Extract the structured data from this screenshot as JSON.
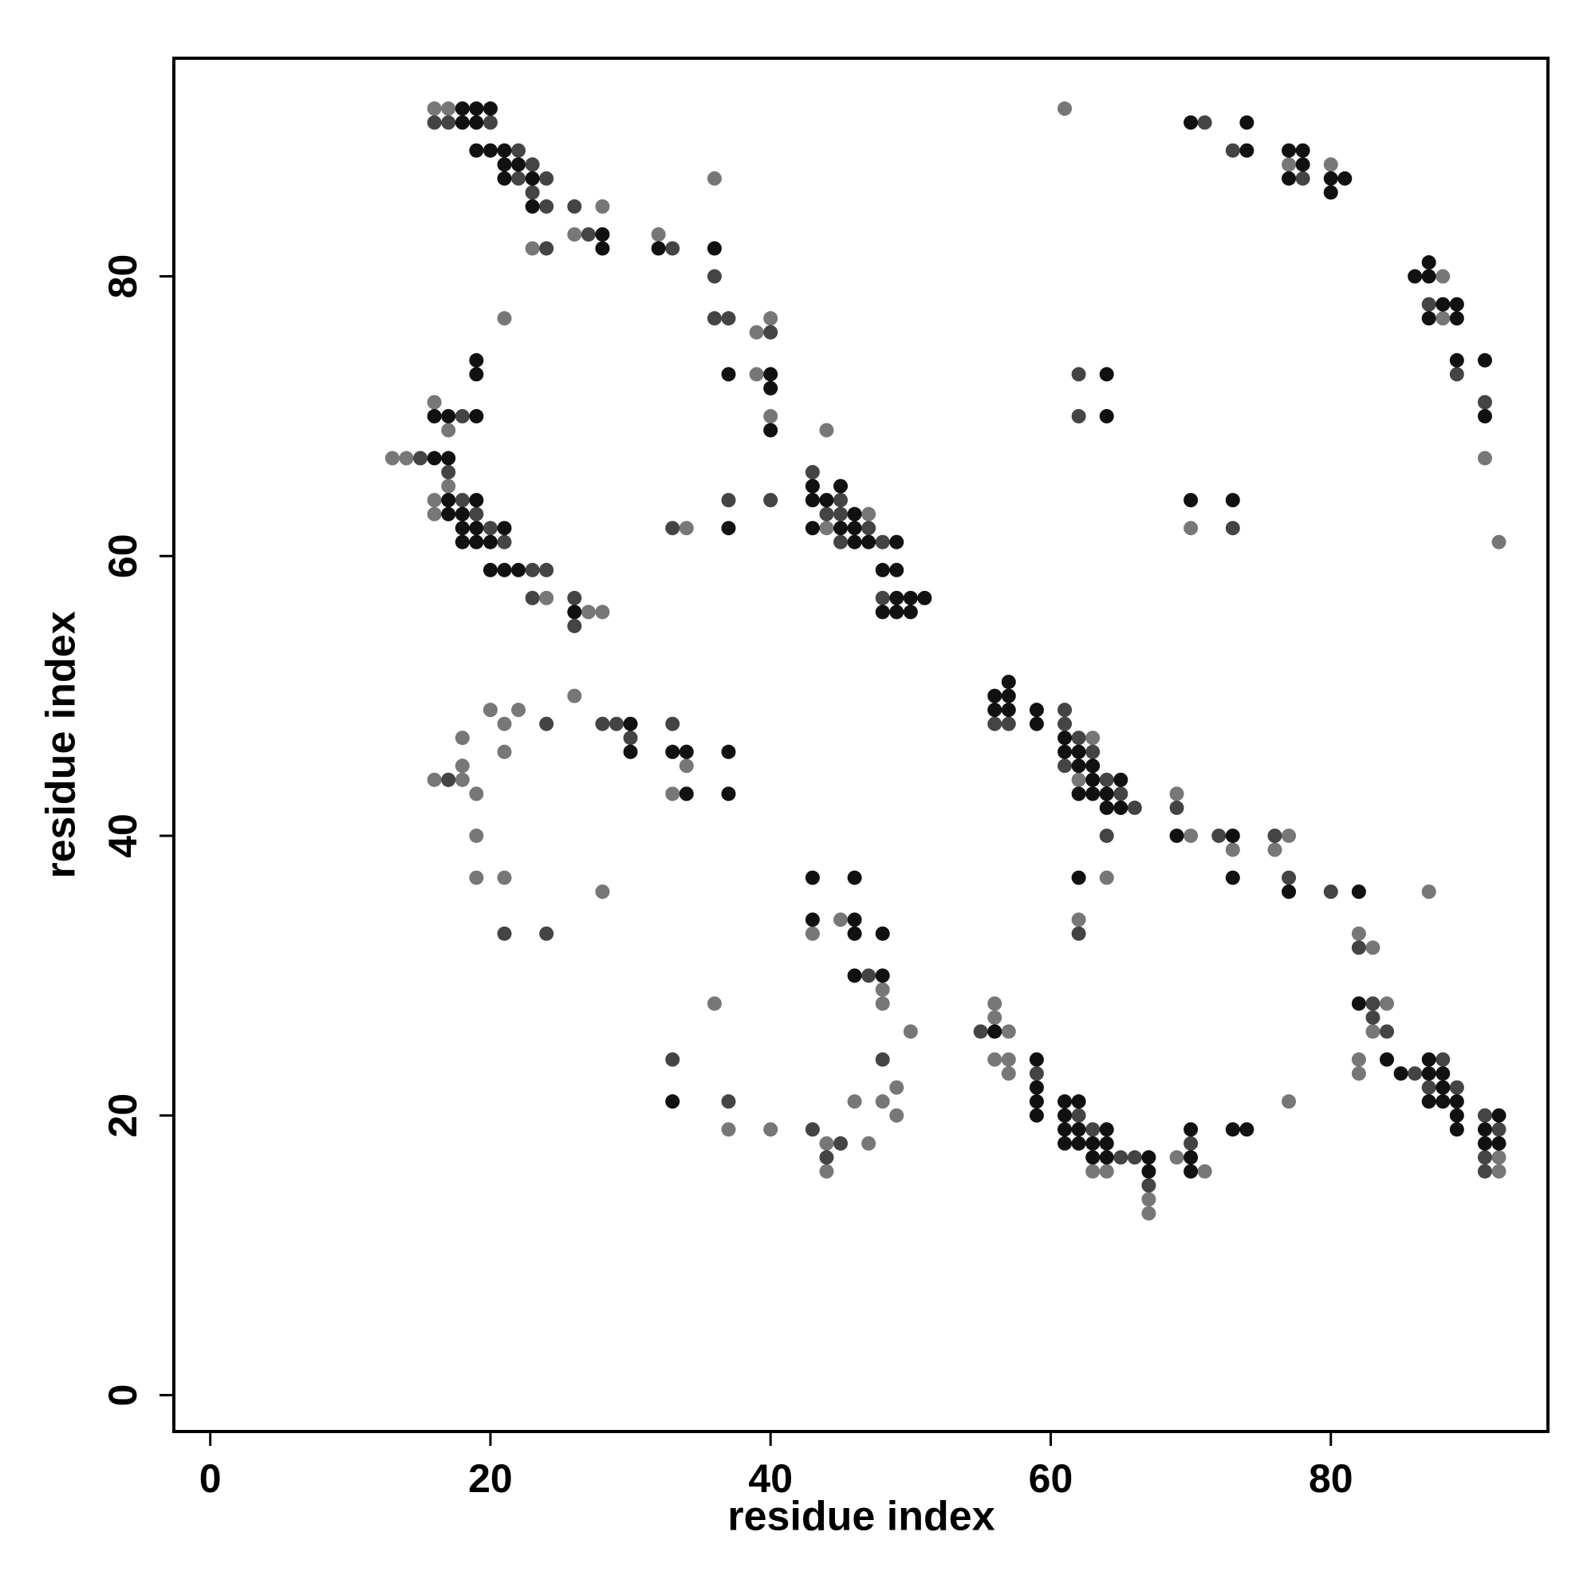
{
  "chart_data": {
    "type": "scatter",
    "xlabel": "residue index",
    "ylabel": "residue index",
    "xlim": [
      -2.6,
      95.5
    ],
    "ylim": [
      -2.6,
      95.6
    ],
    "xticks": [
      0,
      20,
      40,
      60,
      80
    ],
    "yticks": [
      0,
      20,
      40,
      60,
      80
    ],
    "series": [
      {
        "color": "#777777",
        "x": [
          16,
          17,
          61,
          77,
          80,
          36,
          28,
          26,
          32,
          23,
          88,
          21,
          40,
          88,
          39,
          39,
          16,
          40,
          17,
          44,
          13,
          14,
          91,
          17,
          16,
          16,
          47,
          34,
          44,
          70,
          92,
          24,
          27,
          28,
          26,
          20,
          22,
          21,
          18,
          63,
          21,
          18,
          34,
          16,
          18,
          62,
          19,
          33,
          69,
          19,
          70,
          77,
          73,
          76,
          19,
          21,
          64,
          28,
          87,
          45,
          62,
          43,
          82,
          83,
          48,
          36,
          48,
          56,
          84,
          56,
          50,
          57,
          83,
          56,
          57,
          82,
          57,
          82,
          49,
          46,
          48,
          77,
          49,
          37,
          40,
          44,
          47,
          69,
          92,
          44,
          63,
          64,
          71,
          92,
          67,
          67
        ],
        "values": [
          92,
          92,
          92,
          88,
          88,
          87,
          85,
          83,
          83,
          82,
          80,
          77,
          77,
          77,
          76,
          73,
          71,
          70,
          69,
          69,
          67,
          67,
          67,
          65,
          64,
          63,
          63,
          62,
          62,
          62,
          61,
          57,
          56,
          56,
          50,
          49,
          49,
          48,
          47,
          47,
          46,
          45,
          45,
          44,
          44,
          44,
          43,
          43,
          43,
          40,
          40,
          40,
          39,
          39,
          37,
          37,
          37,
          36,
          36,
          34,
          34,
          33,
          33,
          32,
          29,
          28,
          28,
          28,
          28,
          27,
          26,
          26,
          26,
          24,
          24,
          24,
          23,
          23,
          22,
          21,
          21,
          21,
          20,
          19,
          19,
          18,
          18,
          17,
          17,
          16,
          16,
          16,
          16,
          16,
          14,
          13
        ]
      },
      {
        "color": "#444444",
        "x": [
          16,
          17,
          20,
          22,
          23,
          22,
          24,
          23,
          24,
          26,
          27,
          24,
          33,
          36,
          36,
          37,
          40,
          18,
          15,
          17,
          43,
          18,
          37,
          40,
          45,
          19,
          44,
          45,
          20,
          33,
          47,
          21,
          45,
          48,
          23,
          24,
          23,
          26,
          48,
          26,
          61,
          24,
          28,
          29,
          33,
          56,
          57,
          61,
          30,
          62,
          63,
          61,
          17,
          64,
          65,
          66,
          69,
          64,
          72,
          76,
          77,
          80,
          21,
          24,
          62,
          82,
          47,
          83,
          83,
          55,
          84,
          33,
          48,
          88,
          59,
          86,
          87,
          89,
          37,
          62,
          91,
          43,
          63,
          92,
          45,
          70,
          44,
          65,
          66,
          91,
          91,
          67,
          71,
          73,
          78,
          87,
          62,
          89,
          91,
          62,
          73
        ],
        "values": [
          91,
          91,
          91,
          89,
          88,
          87,
          87,
          86,
          85,
          85,
          83,
          82,
          82,
          80,
          77,
          77,
          76,
          70,
          67,
          66,
          66,
          64,
          64,
          64,
          64,
          63,
          63,
          63,
          62,
          62,
          62,
          61,
          61,
          61,
          59,
          59,
          57,
          57,
          57,
          55,
          49,
          48,
          48,
          48,
          48,
          48,
          48,
          48,
          47,
          47,
          46,
          45,
          44,
          44,
          43,
          42,
          42,
          40,
          40,
          40,
          37,
          36,
          33,
          33,
          33,
          32,
          30,
          28,
          27,
          26,
          26,
          24,
          24,
          24,
          23,
          23,
          22,
          22,
          21,
          20,
          20,
          19,
          19,
          19,
          18,
          18,
          17,
          17,
          17,
          17,
          16,
          15,
          91,
          89,
          87,
          78,
          73,
          73,
          71,
          70,
          62
        ]
      },
      {
        "color": "#111111",
        "x": [
          18,
          19,
          20,
          18,
          19,
          19,
          20,
          21,
          21,
          22,
          21,
          23,
          23,
          28,
          28,
          32,
          36,
          19,
          19,
          37,
          40,
          40,
          16,
          17,
          19,
          40,
          16,
          17,
          43,
          45,
          17,
          19,
          43,
          44,
          17,
          18,
          46,
          18,
          19,
          21,
          37,
          43,
          45,
          46,
          18,
          19,
          20,
          46,
          47,
          49,
          20,
          21,
          22,
          48,
          49,
          49,
          50,
          51,
          26,
          48,
          49,
          50,
          57,
          56,
          57,
          56,
          57,
          59,
          30,
          59,
          61,
          30,
          33,
          34,
          37,
          61,
          62,
          62,
          63,
          63,
          65,
          34,
          37,
          62,
          63,
          64,
          64,
          65,
          69,
          73,
          43,
          46,
          62,
          73,
          77,
          82,
          43,
          46,
          46,
          48,
          46,
          48,
          82,
          56,
          59,
          84,
          87,
          85,
          87,
          88,
          59,
          88,
          33,
          59,
          61,
          62,
          87,
          88,
          89,
          59,
          61,
          89,
          92,
          61,
          62,
          64,
          70,
          73,
          74,
          89,
          91,
          61,
          62,
          63,
          64,
          91,
          92,
          63,
          64,
          67,
          70,
          67,
          70,
          70,
          74,
          74,
          77,
          78,
          78,
          77,
          80,
          81,
          80,
          87,
          86,
          87,
          88,
          89,
          87,
          89,
          89,
          91,
          64,
          64,
          91,
          70,
          73
        ],
        "values": [
          92,
          92,
          92,
          91,
          91,
          89,
          89,
          89,
          88,
          88,
          87,
          87,
          85,
          83,
          82,
          82,
          82,
          74,
          73,
          73,
          73,
          72,
          70,
          70,
          70,
          69,
          67,
          67,
          65,
          65,
          64,
          64,
          64,
          64,
          63,
          63,
          63,
          62,
          62,
          62,
          62,
          62,
          62,
          62,
          61,
          61,
          61,
          61,
          61,
          61,
          59,
          59,
          59,
          59,
          59,
          57,
          57,
          57,
          56,
          56,
          56,
          56,
          51,
          50,
          50,
          49,
          49,
          49,
          48,
          48,
          47,
          46,
          46,
          46,
          46,
          46,
          46,
          45,
          45,
          44,
          44,
          43,
          43,
          43,
          43,
          43,
          42,
          42,
          40,
          40,
          37,
          37,
          37,
          37,
          36,
          36,
          34,
          34,
          33,
          33,
          30,
          30,
          28,
          26,
          24,
          24,
          24,
          23,
          23,
          23,
          22,
          22,
          21,
          21,
          21,
          21,
          21,
          21,
          21,
          20,
          20,
          20,
          20,
          19,
          19,
          19,
          19,
          19,
          19,
          19,
          19,
          18,
          18,
          18,
          18,
          18,
          18,
          17,
          17,
          17,
          17,
          16,
          16,
          91,
          91,
          89,
          89,
          89,
          88,
          87,
          87,
          87,
          86,
          81,
          80,
          80,
          78,
          78,
          77,
          77,
          74,
          74,
          73,
          70,
          70,
          64,
          64
        ]
      }
    ]
  }
}
